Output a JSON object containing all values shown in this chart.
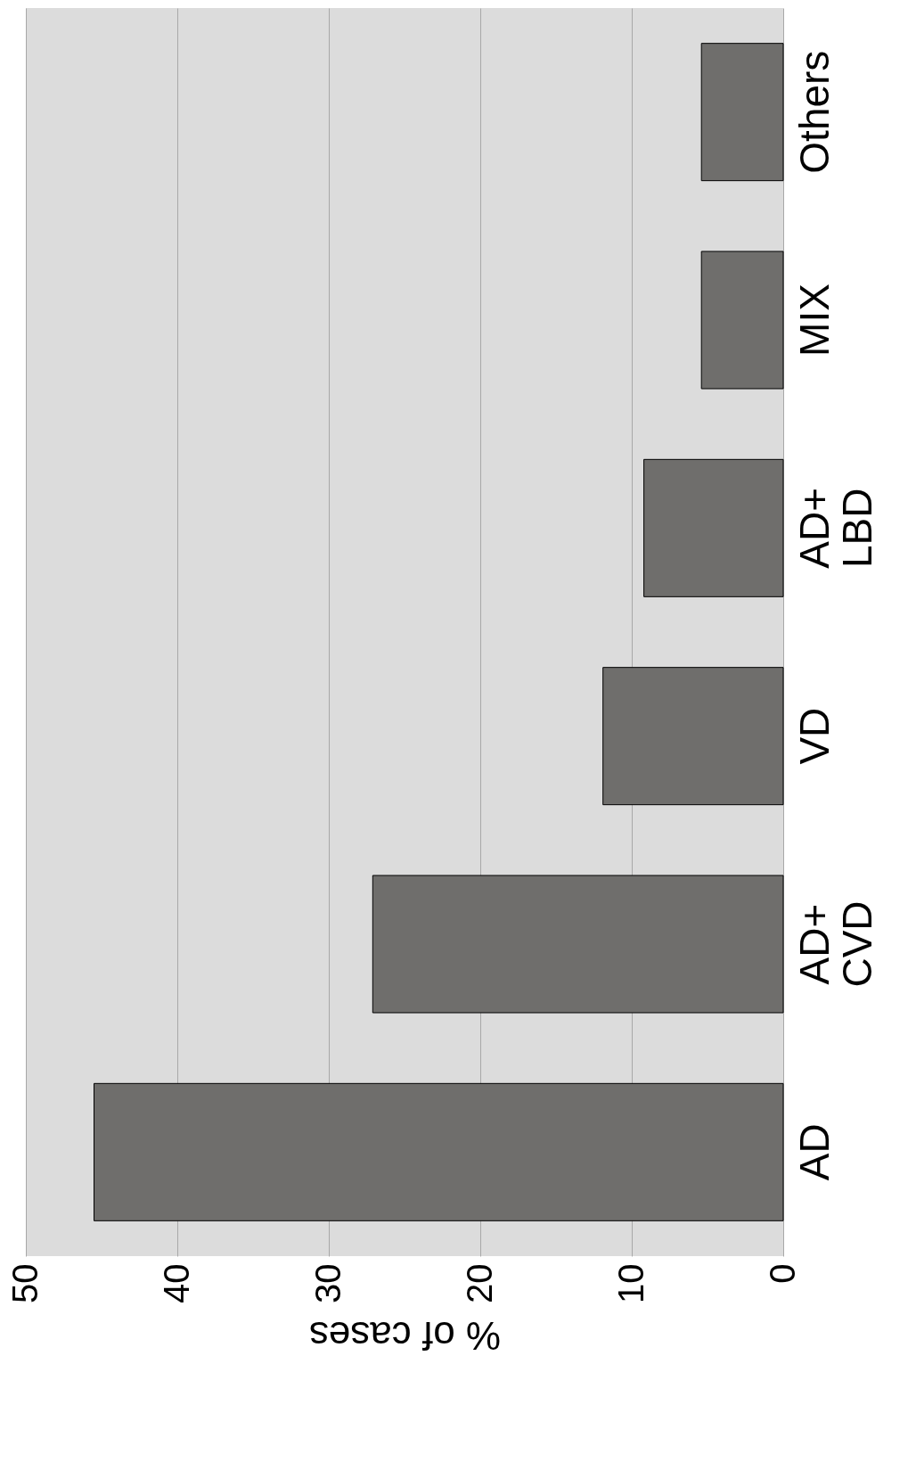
{
  "chart_data": {
    "type": "bar",
    "orientation": "horizontal",
    "xlabel": "% of cases",
    "categories": [
      "Others",
      "MIX",
      "AD+ LBD",
      "VD",
      "AD+ CVD",
      "AD"
    ],
    "values": [
      5.4,
      5.4,
      9.2,
      11.9,
      27.1,
      45.5
    ],
    "color": "#6f6e6c",
    "xlim": [
      50,
      0
    ],
    "xticks": [
      50,
      40,
      30,
      20,
      10,
      0
    ],
    "grid": true
  }
}
